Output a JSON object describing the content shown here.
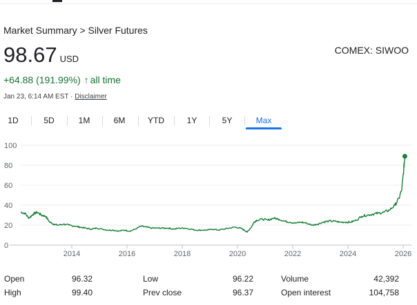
{
  "breadcrumb": {
    "prefix": "Market Summary",
    "separator": " > ",
    "title": "Silver Futures"
  },
  "quote": {
    "price": "98.67",
    "currency": "USD",
    "ticker": "COMEX: SIWOO",
    "change_text": "+64.88 (191.99%)",
    "change_arrow": "↑",
    "change_period": "all time",
    "timestamp": "Jan 23, 6:14 AM EST",
    "dot": " · ",
    "disclaimer": "Disclaimer"
  },
  "range_tabs": [
    {
      "label": "1D"
    },
    {
      "label": "5D"
    },
    {
      "label": "1M"
    },
    {
      "label": "6M"
    },
    {
      "label": "YTD"
    },
    {
      "label": "1Y"
    },
    {
      "label": "5Y"
    },
    {
      "label": "Max",
      "active": true
    }
  ],
  "colors": {
    "line": "#188038",
    "positive": "#137333",
    "accent": "#1a73e8"
  },
  "chart_data": {
    "type": "line",
    "title": "",
    "xlabel": "",
    "ylabel": "",
    "x_ticks": [
      "2014",
      "2016",
      "2018",
      "2020",
      "2022",
      "2024",
      "2026"
    ],
    "y_ticks": [
      "0",
      "20",
      "40",
      "60",
      "80",
      "100"
    ],
    "xlim": [
      2012.15,
      2026.1
    ],
    "ylim": [
      0,
      100
    ],
    "grid": true,
    "series": [
      {
        "x": [
          2012.15,
          2012.3,
          2012.45,
          2012.6,
          2012.75,
          2012.9,
          2013.05,
          2013.2,
          2013.35,
          2013.5,
          2013.7,
          2013.9,
          2014.1,
          2014.3,
          2014.5,
          2014.7,
          2014.9,
          2015.1,
          2015.3,
          2015.5,
          2015.7,
          2015.9,
          2016.1,
          2016.3,
          2016.5,
          2016.7,
          2016.9,
          2017.1,
          2017.3,
          2017.5,
          2017.7,
          2017.9,
          2018.1,
          2018.3,
          2018.5,
          2018.7,
          2018.9,
          2019.1,
          2019.3,
          2019.5,
          2019.7,
          2019.9,
          2020.1,
          2020.25,
          2020.35,
          2020.5,
          2020.6,
          2020.7,
          2020.9,
          2021.1,
          2021.3,
          2021.5,
          2021.7,
          2021.9,
          2022.1,
          2022.3,
          2022.5,
          2022.7,
          2022.9,
          2023.1,
          2023.3,
          2023.5,
          2023.7,
          2023.9,
          2024.1,
          2024.3,
          2024.5,
          2024.7,
          2024.9,
          2025.1,
          2025.3,
          2025.5,
          2025.7,
          2025.85,
          2025.95,
          2026.02,
          2026.06
        ],
        "values": [
          33,
          32,
          27,
          31,
          33,
          30,
          29,
          23,
          21,
          20,
          21,
          20,
          19,
          18,
          17,
          16,
          17,
          16,
          15,
          15,
          14,
          15,
          14,
          16,
          19,
          18,
          17,
          17,
          17,
          17,
          16,
          17,
          17,
          16,
          15,
          15,
          15,
          16,
          15,
          16,
          17,
          18,
          17,
          15,
          13,
          18,
          23,
          25,
          26,
          25,
          27,
          26,
          24,
          23,
          22,
          23,
          22,
          20,
          21,
          23,
          24,
          24,
          23,
          23,
          23,
          25,
          29,
          30,
          31,
          32,
          33,
          35,
          40,
          47,
          56,
          76,
          89
        ]
      }
    ],
    "end_marker_value": 89
  },
  "stats": {
    "rows": [
      {
        "label": "Open",
        "value": "96.32"
      },
      {
        "label": "Low",
        "value": "96.22"
      },
      {
        "label": "Volume",
        "value": "42,392"
      },
      {
        "label": "High",
        "value": "99.40"
      },
      {
        "label": "Prev close",
        "value": "96.37"
      },
      {
        "label": "Open interest",
        "value": "104,758"
      }
    ]
  }
}
